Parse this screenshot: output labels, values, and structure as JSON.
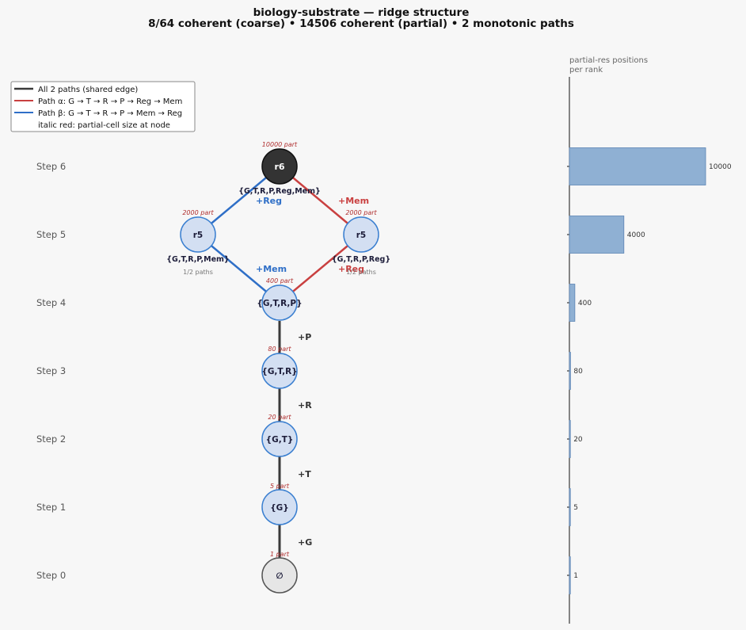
{
  "title_line1": "biology-substrate — ridge structure",
  "title_line2": "8/64 coherent (coarse)  •  14506 coherent (partial)  •  2 monotonic paths",
  "legend": {
    "items": [
      {
        "label": "All 2 paths (shared edge)",
        "color": "#3a3a3a"
      },
      {
        "label": "Path α: G → T → R → P → Reg → Mem",
        "color": "#c94040"
      },
      {
        "label": "Path β: G → T → R → P → Mem → Reg",
        "color": "#2f6fc7"
      },
      {
        "label": "italic red: partial-cell size at node",
        "color": ""
      }
    ]
  },
  "steps": [
    "Step 6",
    "Step 5",
    "Step 4",
    "Step 3",
    "Step 2",
    "Step 1",
    "Step 0"
  ],
  "nodes": {
    "r6": {
      "label": "r6",
      "set": "{G,T,R,P,Reg,Mem}",
      "part": "10000 part"
    },
    "r5_left": {
      "label": "r5",
      "set": "{G,T,R,P,Mem}",
      "part": "2000 part",
      "paths": "1/2 paths"
    },
    "r5_right": {
      "label": "r5",
      "set": "{G,T,R,P,Reg}",
      "part": "2000 part",
      "paths": "1/2 paths"
    },
    "s4": {
      "label": "{G,T,R,P}",
      "part": "400 part"
    },
    "s3": {
      "label": "{G,T,R}",
      "part": "80 part"
    },
    "s2": {
      "label": "{G,T}",
      "part": "20 part"
    },
    "s1": {
      "label": "{G}",
      "part": "5 part"
    },
    "s0": {
      "label": "∅",
      "part": "1 part"
    }
  },
  "edge_labels": {
    "mem_top": "+Mem",
    "reg_top": "+Reg",
    "mem_left": "+Mem",
    "reg_right": "+Reg",
    "p": "+P",
    "r": "+R",
    "t": "+T",
    "g": "+G"
  },
  "colors": {
    "shared": "#3a3a3a",
    "alpha": "#c94040",
    "beta": "#2f6fc7",
    "node_fill": "#d3dff2",
    "node_stroke": "#3a7fd0",
    "r6_fill": "#333333",
    "empty_fill": "#e6e6e6",
    "bar": "#8fb0d3"
  },
  "chart_data": {
    "type": "bar",
    "orientation": "horizontal",
    "title": "partial-res positions per rank",
    "categories": [
      "Step 6",
      "Step 5",
      "Step 4",
      "Step 3",
      "Step 2",
      "Step 1",
      "Step 0"
    ],
    "values": [
      10000,
      4000,
      400,
      80,
      20,
      5,
      1
    ],
    "value_labels": [
      "10000",
      "4000",
      "400",
      "80",
      "20",
      "5",
      "1"
    ],
    "xlim": [
      0,
      10000
    ]
  }
}
